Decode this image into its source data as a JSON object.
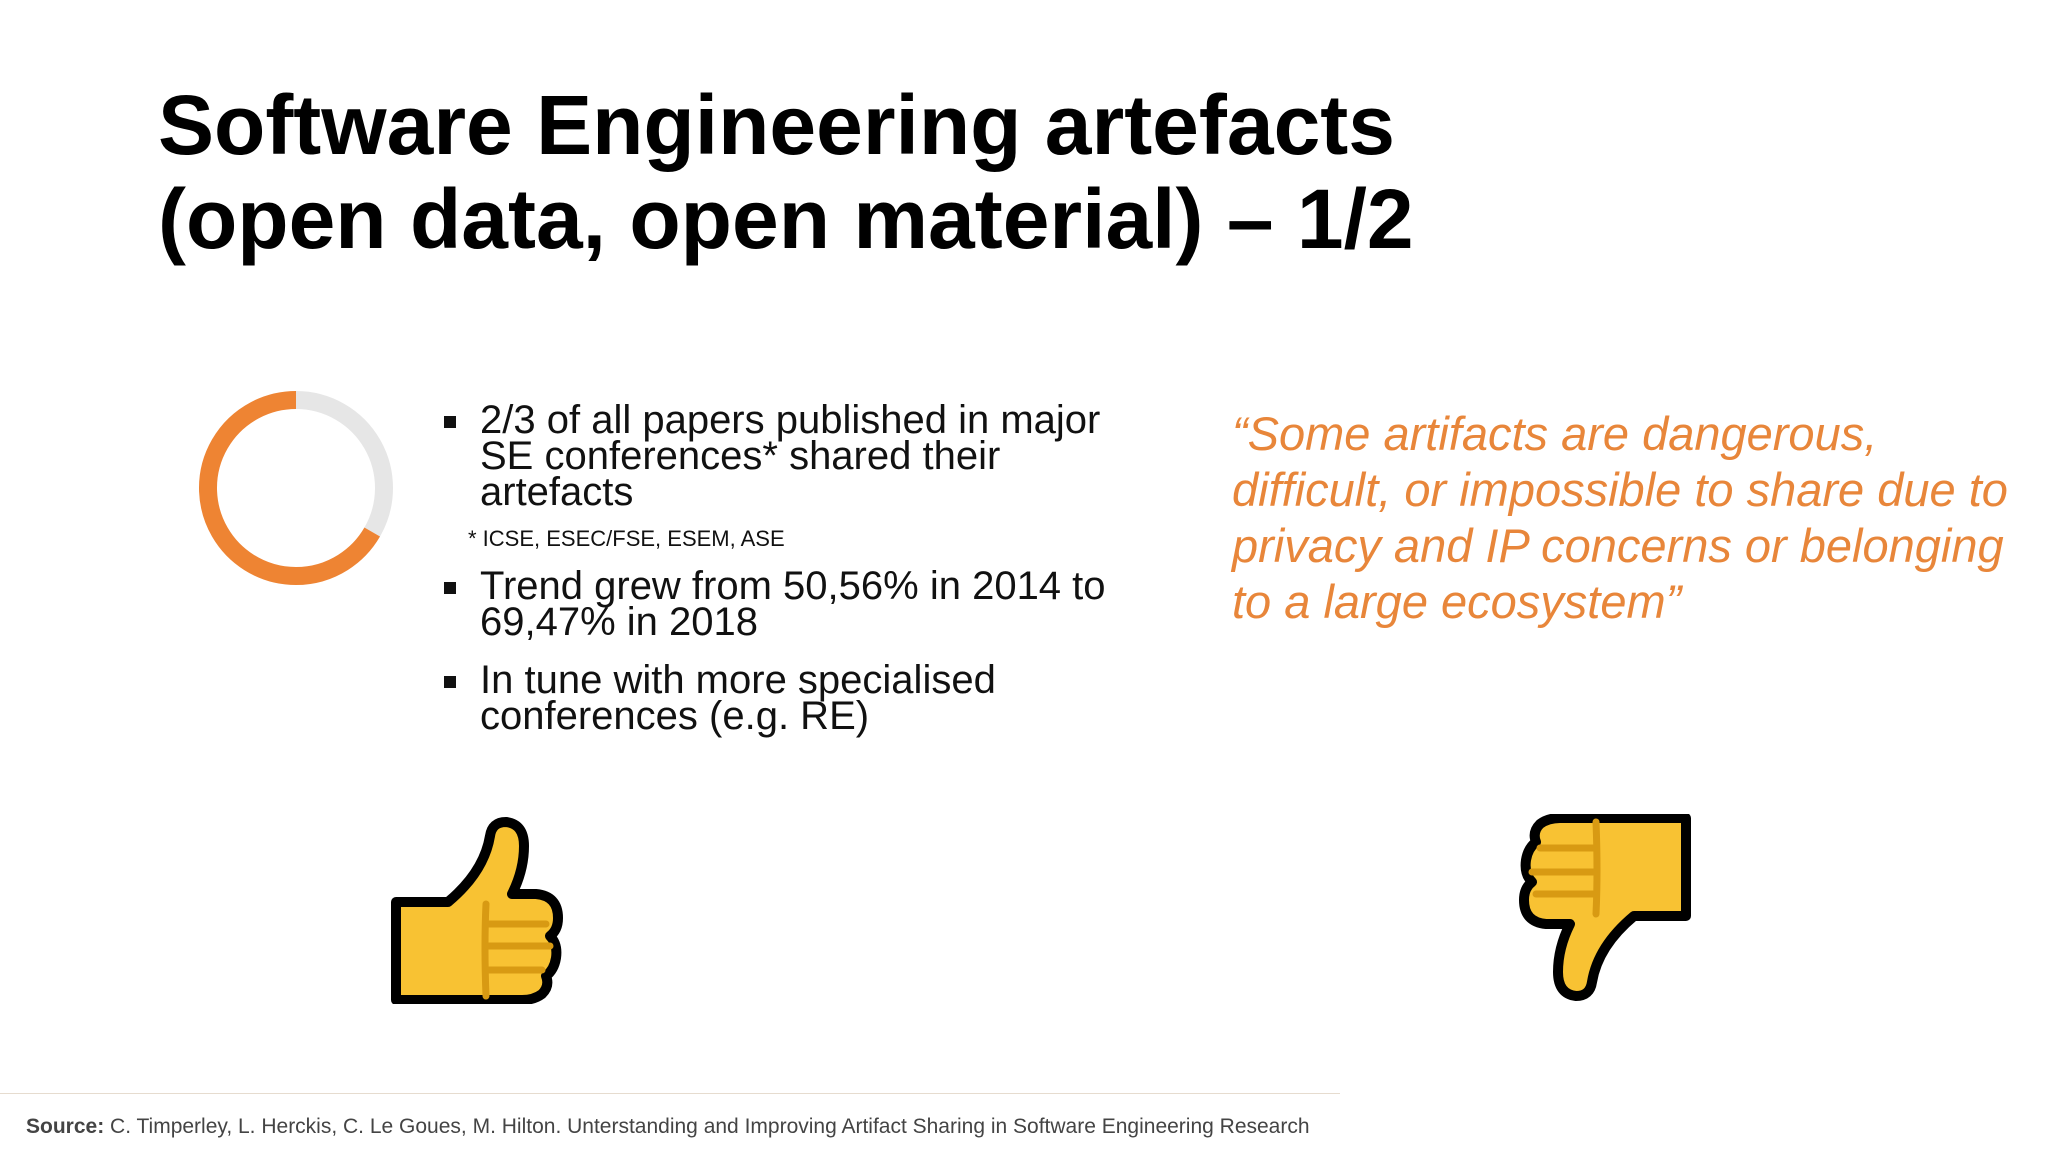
{
  "slide": {
    "title_line1": "Software Engineering artefacts",
    "title_line2": "(open data, open material) – 1/2"
  },
  "chart_data": {
    "type": "pie",
    "variant": "donut",
    "values": [
      2,
      1
    ],
    "colors": [
      "#ee8433",
      "#e6e6e6"
    ]
  },
  "bullets": {
    "b1": "2/3 of all papers published in major SE conferences* shared their artefacts",
    "footnote": "* ICSE, ESEC/FSE, ESEM, ASE",
    "b2": "Trend grew from 50,56% in 2014 to 69,47% in 2018",
    "b3": "In tune with more specialised conferences (e.g. RE)"
  },
  "quote": {
    "text": "“Some artifacts are dangerous, difficult, or impossible to share due to privacy and IP concerns or belonging to a large ecosystem”",
    "color": "#e8863a"
  },
  "icons": {
    "positive": "thumbs-up-icon",
    "negative": "thumbs-down-icon"
  },
  "footer": {
    "source_label": "Source:",
    "source_text": "C. Timperley, L. Herckis, C. Le Goues, M. Hilton. Unterstanding and Improving Artifact Sharing in Software Engineering Research"
  }
}
